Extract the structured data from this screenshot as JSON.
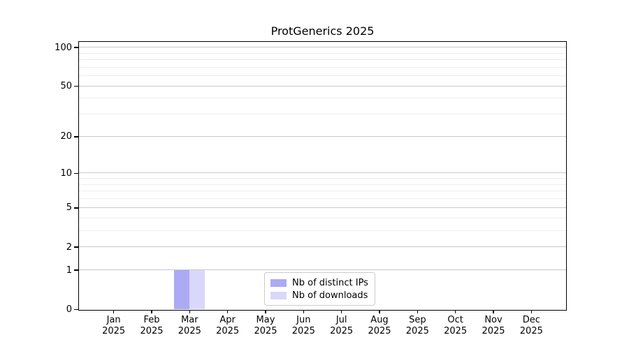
{
  "figure": {
    "title": "ProtGenerics 2025"
  },
  "chart_data": {
    "type": "bar",
    "title": "ProtGenerics 2025",
    "x_tick_months": [
      "Jan",
      "Feb",
      "Mar",
      "Apr",
      "May",
      "Jun",
      "Jul",
      "Aug",
      "Sep",
      "Oct",
      "Nov",
      "Dec"
    ],
    "x_tick_year": "2025",
    "categories": [
      "Jan 2025",
      "Feb 2025",
      "Mar 2025",
      "Apr 2025",
      "May 2025",
      "Jun 2025",
      "Jul 2025",
      "Aug 2025",
      "Sep 2025",
      "Oct 2025",
      "Nov 2025",
      "Dec 2025"
    ],
    "series": [
      {
        "id": "distinct-ips",
        "name": "Nb of distinct IPs",
        "color": "#abaaf4",
        "values": [
          0,
          0,
          1,
          0,
          0,
          0,
          0,
          0,
          0,
          0,
          0,
          0
        ]
      },
      {
        "id": "downloads",
        "name": "Nb of downloads",
        "color": "#d9d8fa",
        "values": [
          0,
          0,
          1,
          0,
          0,
          0,
          0,
          0,
          0,
          0,
          0,
          0
        ]
      }
    ],
    "yscale": "log1p",
    "ylim": [
      0,
      110
    ],
    "yticks_major": [
      0,
      1,
      2,
      5,
      10,
      20,
      50,
      100
    ],
    "yticks_minor": [
      3,
      4,
      6,
      7,
      8,
      9,
      30,
      40,
      60,
      70,
      80,
      90
    ],
    "grid": "horizontal",
    "legend_position": "bottom-center-inside"
  },
  "colors": {
    "background": "#ffffff",
    "spine": "#000000",
    "grid_major": "#c9c9c9",
    "grid_minor": "#ededed",
    "text": "#000000",
    "legend_border": "#cccccc"
  }
}
